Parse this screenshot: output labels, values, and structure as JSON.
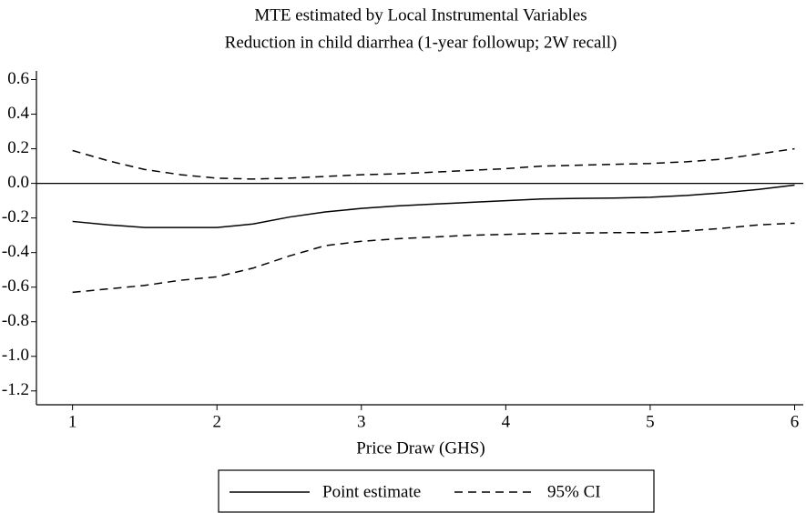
{
  "chart_data": {
    "type": "line",
    "title": "MTE estimated by Local Instrumental Variables",
    "subtitle": "Reduction in child diarrhea (1-year followup; 2W recall)",
    "x_label": "Price Draw (GHS)",
    "x": [
      1,
      1.25,
      1.5,
      1.75,
      2,
      2.25,
      2.5,
      2.75,
      3,
      3.25,
      3.5,
      3.75,
      4,
      4.25,
      4.5,
      4.75,
      5,
      5.25,
      5.5,
      5.75,
      6
    ],
    "series": [
      {
        "name": "Point estimate",
        "color": "#000000",
        "dash": false,
        "values": [
          -0.22,
          -0.24,
          -0.255,
          -0.255,
          -0.255,
          -0.235,
          -0.195,
          -0.165,
          -0.145,
          -0.13,
          -0.12,
          -0.11,
          -0.1,
          -0.09,
          -0.087,
          -0.085,
          -0.08,
          -0.07,
          -0.055,
          -0.035,
          -0.01
        ]
      },
      {
        "name": "95% CI",
        "color": "#000000",
        "dash": true,
        "upper": [
          0.19,
          0.13,
          0.08,
          0.05,
          0.03,
          0.025,
          0.03,
          0.04,
          0.05,
          0.055,
          0.065,
          0.075,
          0.085,
          0.1,
          0.105,
          0.11,
          0.115,
          0.125,
          0.14,
          0.17,
          0.2
        ],
        "lower": [
          -0.63,
          -0.61,
          -0.59,
          -0.56,
          -0.54,
          -0.49,
          -0.42,
          -0.36,
          -0.335,
          -0.32,
          -0.31,
          -0.3,
          -0.295,
          -0.29,
          -0.287,
          -0.285,
          -0.285,
          -0.275,
          -0.26,
          -0.24,
          -0.23
        ]
      }
    ],
    "reference_line": 0,
    "xlim": [
      0.75,
      6.06
    ],
    "ylim": [
      -1.28,
      0.65
    ],
    "xticks": [
      1,
      2,
      3,
      4,
      5,
      6
    ],
    "yticks": [
      0.6,
      0.4,
      0.2,
      {
        "value": 0,
        "label": "0.0"
      },
      -0.2,
      -0.4,
      -0.6,
      -0.8,
      {
        "value": -1,
        "label": "-1.0"
      },
      -1.2
    ],
    "grid": false
  }
}
